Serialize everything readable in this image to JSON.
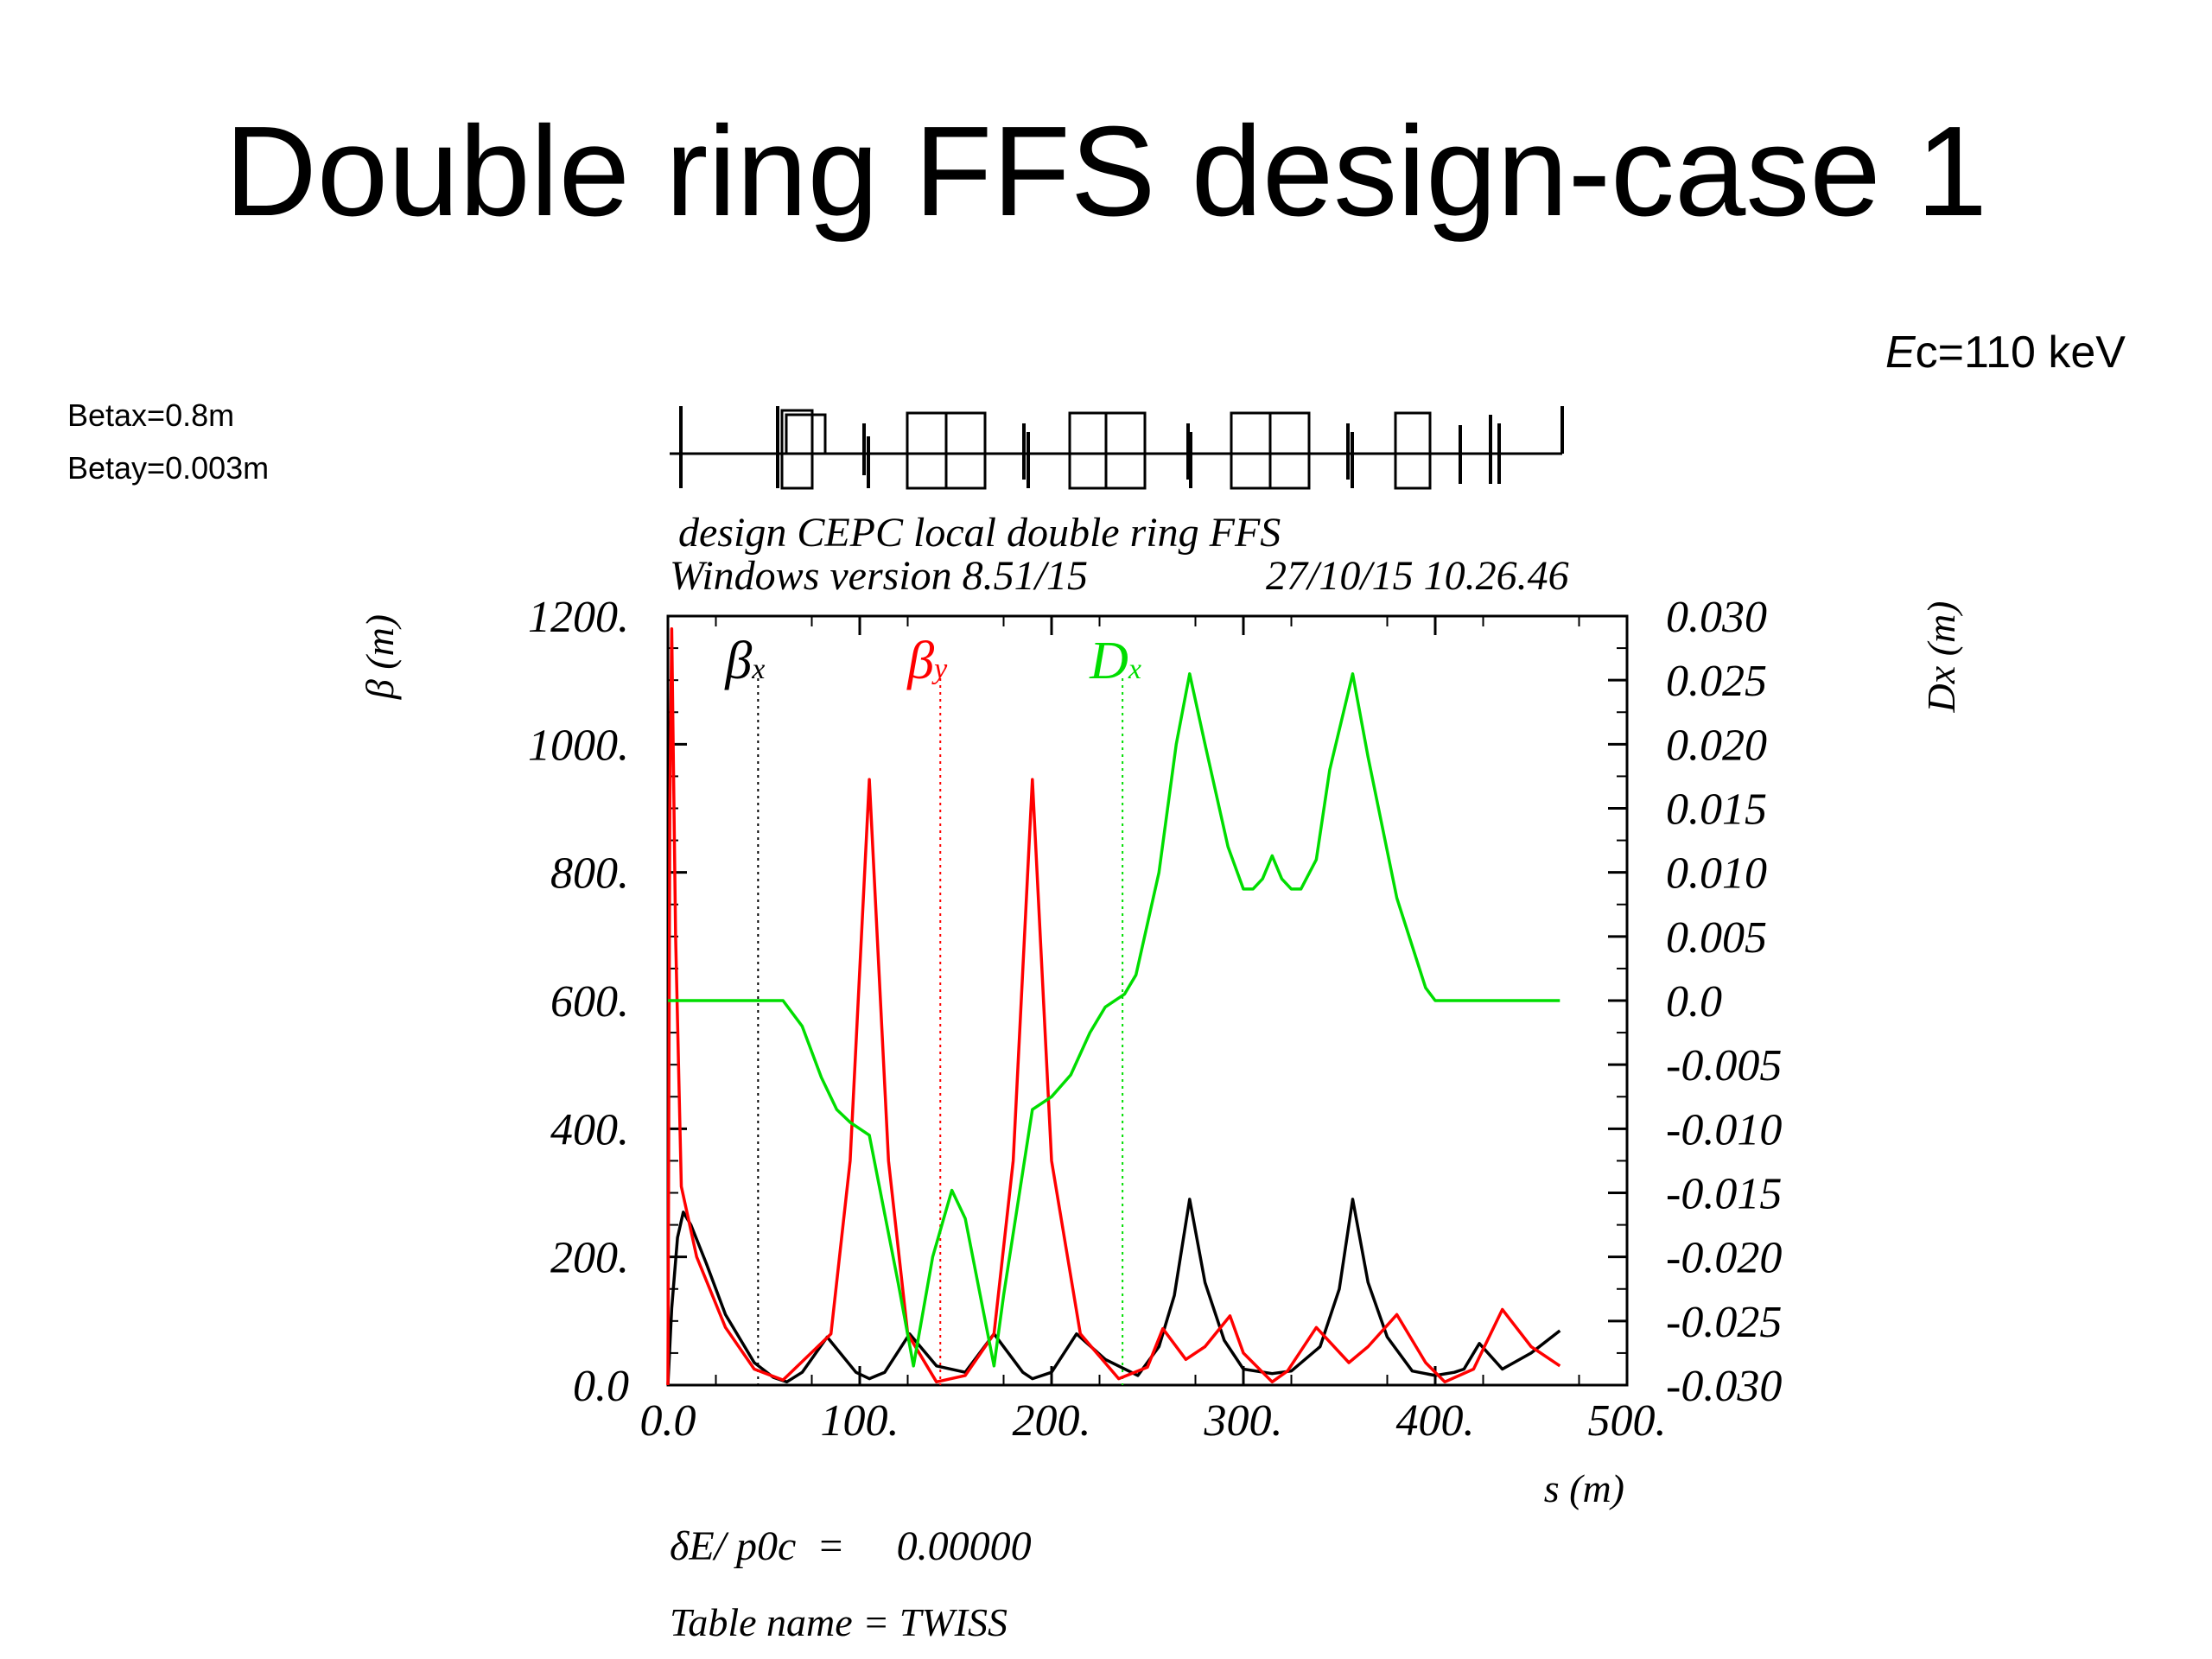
{
  "slide": {
    "title": "Double ring FFS design-case 1",
    "betax": "Betax=0.8m",
    "betay": "Betay=0.003m",
    "ec_symbol": "E",
    "ec_rest": "c=110 keV"
  },
  "chart_data": {
    "type": "line",
    "header_line1": "design CEPC local double ring FFS",
    "header_line2_left": "Windows version 8.51/15",
    "header_line2_right": "27/10/15  10.26.46",
    "xlabel": "s (m)",
    "ylabel_left": "β (m)",
    "ylabel_right": "Dx (m)",
    "xlim": [
      0,
      500
    ],
    "ylim_left": [
      0,
      1200
    ],
    "ylim_right": [
      -0.03,
      0.03
    ],
    "x_ticks": [
      "0.0",
      "100.",
      "200.",
      "300.",
      "400.",
      "500."
    ],
    "y_left_ticks": [
      "0.0",
      "200.",
      "400.",
      "600.",
      "800.",
      "1000.",
      "1200."
    ],
    "y_right_ticks": [
      "-0.030",
      "-0.025",
      "-0.020",
      "-0.015",
      "-0.010",
      "-0.005",
      "0.0",
      "0.005",
      "0.010",
      "0.015",
      "0.020",
      "0.025",
      "0.030"
    ],
    "legend": [
      {
        "symbol": "β",
        "sub": "x",
        "color": "#000000",
        "marker_x": 47
      },
      {
        "symbol": "β",
        "sub": "y",
        "color": "#ff0000",
        "marker_x": 142
      },
      {
        "symbol": "D",
        "sub": "x",
        "color": "#00dd00",
        "marker_x": 237
      }
    ],
    "footer_delta": "δE/ p0c  =     0.00000",
    "footer_table": "Table name = TWISS",
    "series": [
      {
        "name": "βx",
        "axis": "left",
        "color": "#000000",
        "x": [
          0,
          2,
          5,
          8,
          12,
          20,
          30,
          45,
          55,
          62,
          70,
          83,
          98,
          105,
          113,
          126,
          140,
          155,
          170,
          185,
          190,
          200,
          213,
          228,
          245,
          256,
          264,
          272,
          280,
          290,
          300,
          315,
          325,
          340,
          350,
          357,
          365,
          375,
          388,
          400,
          410,
          415,
          423,
          435,
          450,
          465
        ],
        "y": [
          0,
          120,
          230,
          270,
          250,
          190,
          110,
          35,
          12,
          5,
          20,
          75,
          20,
          10,
          20,
          80,
          30,
          20,
          80,
          20,
          10,
          20,
          80,
          40,
          15,
          60,
          140,
          290,
          160,
          70,
          25,
          18,
          22,
          60,
          150,
          290,
          160,
          75,
          22,
          15,
          20,
          25,
          65,
          25,
          50,
          85
        ]
      },
      {
        "name": "βy",
        "axis": "left",
        "color": "#ff0000",
        "x": [
          0,
          1,
          2,
          4,
          7,
          15,
          30,
          45,
          60,
          85,
          95,
          105,
          115,
          125,
          140,
          155,
          170,
          180,
          190,
          200,
          215,
          235,
          250,
          258,
          270,
          280,
          293,
          300,
          315,
          323,
          338,
          355,
          365,
          380,
          395,
          405,
          420,
          435,
          450,
          465
        ],
        "y": [
          0,
          900,
          1180,
          700,
          310,
          200,
          90,
          25,
          8,
          80,
          350,
          945,
          350,
          80,
          5,
          15,
          80,
          350,
          945,
          350,
          80,
          10,
          28,
          88,
          40,
          60,
          108,
          50,
          5,
          22,
          90,
          35,
          60,
          110,
          35,
          5,
          25,
          118,
          60,
          30
        ]
      },
      {
        "name": "Dx",
        "axis": "right",
        "color": "#00dd00",
        "x": [
          0,
          60,
          70,
          80,
          88,
          95,
          105,
          120,
          128,
          138,
          148,
          155,
          170,
          175,
          190,
          200,
          210,
          220,
          228,
          238,
          244,
          256,
          265,
          272,
          280,
          292,
          300,
          305,
          310,
          315,
          320,
          325,
          330,
          338,
          345,
          357,
          365,
          380,
          395,
          400,
          420,
          465
        ],
        "y": [
          0,
          0,
          -0.002,
          -0.006,
          -0.0085,
          -0.0095,
          -0.0105,
          -0.022,
          -0.0285,
          -0.02,
          -0.0148,
          -0.017,
          -0.0285,
          -0.023,
          -0.0085,
          -0.0075,
          -0.0058,
          -0.0025,
          -0.0005,
          0.0005,
          0.002,
          0.01,
          0.02,
          0.0255,
          0.02,
          0.012,
          0.0087,
          0.0087,
          0.0095,
          0.0113,
          0.0095,
          0.0087,
          0.0087,
          0.011,
          0.018,
          0.0255,
          0.019,
          0.008,
          0.001,
          0,
          0,
          0
        ]
      }
    ]
  }
}
